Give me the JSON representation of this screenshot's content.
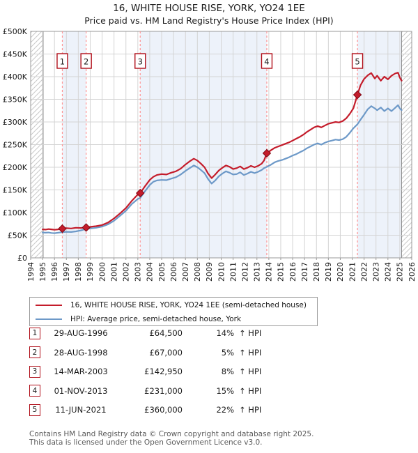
{
  "title": "16, WHITE HOUSE RISE, YORK, YO24 1EE",
  "subtitle": "Price paid vs. HM Land Registry's House Price Index (HPI)",
  "chart_data": {
    "type": "line",
    "x_axis": {
      "min": 1994,
      "max": 2026,
      "ticks": [
        1994,
        1995,
        1996,
        1997,
        1998,
        1999,
        2000,
        2001,
        2002,
        2003,
        2004,
        2005,
        2006,
        2007,
        2008,
        2009,
        2010,
        2011,
        2012,
        2013,
        2014,
        2015,
        2016,
        2017,
        2018,
        2019,
        2020,
        2021,
        2022,
        2023,
        2024,
        2025,
        2026
      ]
    },
    "y_axis": {
      "min": 0,
      "max": 500000,
      "tick_step": 50000,
      "tick_labels": [
        "£0",
        "£50K",
        "£100K",
        "£150K",
        "£200K",
        "£250K",
        "£300K",
        "£350K",
        "£400K",
        "£450K",
        "£500K"
      ]
    },
    "colors": {
      "property": "#c41c2b",
      "hpi": "#6d99c8",
      "sale_line": "#ff9494",
      "band": "#edf2fa",
      "grid": "#d4d4d4",
      "border": "#999999",
      "hatch": "#c9c9c9",
      "badge_border": "#b00d18",
      "data_edge": "#8a8a8a"
    },
    "bands": [
      [
        1996.66,
        1998.66
      ],
      [
        2003.2,
        2013.83
      ],
      [
        2021.44,
        2025.15
      ]
    ],
    "no_data": [
      [
        1994,
        1995.05
      ],
      [
        2025.15,
        2026
      ]
    ],
    "sales": [
      {
        "n": "1",
        "year": 1996.66,
        "price": 64500
      },
      {
        "n": "2",
        "year": 1998.66,
        "price": 67000
      },
      {
        "n": "3",
        "year": 2003.2,
        "price": 142950
      },
      {
        "n": "4",
        "year": 2013.83,
        "price": 231000
      },
      {
        "n": "5",
        "year": 2021.44,
        "price": 360000
      }
    ],
    "series": [
      {
        "name": "16, WHITE HOUSE RISE, YORK, YO24 1EE (semi-detached house)",
        "color": "#c41c2b",
        "points": [
          [
            1995.0,
            63000
          ],
          [
            1995.25,
            62500
          ],
          [
            1995.5,
            63500
          ],
          [
            1995.75,
            63000
          ],
          [
            1996.0,
            62000
          ],
          [
            1996.33,
            63000
          ],
          [
            1996.66,
            64500
          ],
          [
            1997.0,
            65500
          ],
          [
            1997.4,
            65000
          ],
          [
            1997.8,
            66500
          ],
          [
            1998.2,
            66000
          ],
          [
            1998.66,
            67000
          ],
          [
            1999.0,
            68500
          ],
          [
            1999.5,
            70000
          ],
          [
            2000.0,
            72500
          ],
          [
            2000.5,
            78000
          ],
          [
            2001.0,
            87000
          ],
          [
            2001.5,
            98000
          ],
          [
            2002.0,
            110000
          ],
          [
            2002.5,
            126000
          ],
          [
            2003.0,
            140000
          ],
          [
            2003.2,
            142950
          ],
          [
            2003.6,
            158000
          ],
          [
            2004.0,
            172000
          ],
          [
            2004.3,
            179000
          ],
          [
            2004.6,
            183000
          ],
          [
            2005.0,
            185000
          ],
          [
            2005.4,
            184000
          ],
          [
            2005.8,
            188000
          ],
          [
            2006.2,
            191000
          ],
          [
            2006.6,
            197000
          ],
          [
            2007.0,
            206000
          ],
          [
            2007.4,
            214000
          ],
          [
            2007.7,
            219000
          ],
          [
            2008.0,
            215000
          ],
          [
            2008.3,
            208000
          ],
          [
            2008.6,
            200000
          ],
          [
            2008.9,
            186000
          ],
          [
            2009.2,
            176000
          ],
          [
            2009.5,
            184000
          ],
          [
            2009.8,
            193000
          ],
          [
            2010.1,
            199000
          ],
          [
            2010.4,
            204000
          ],
          [
            2010.7,
            201000
          ],
          [
            2011.0,
            196000
          ],
          [
            2011.3,
            198000
          ],
          [
            2011.6,
            202000
          ],
          [
            2011.9,
            196000
          ],
          [
            2012.2,
            199000
          ],
          [
            2012.5,
            203000
          ],
          [
            2012.8,
            200000
          ],
          [
            2013.1,
            203000
          ],
          [
            2013.4,
            208000
          ],
          [
            2013.6,
            215000
          ],
          [
            2013.83,
            231000
          ],
          [
            2014.2,
            238000
          ],
          [
            2014.5,
            243000
          ],
          [
            2014.8,
            246000
          ],
          [
            2015.1,
            249000
          ],
          [
            2015.4,
            252000
          ],
          [
            2015.7,
            255000
          ],
          [
            2016.0,
            259000
          ],
          [
            2016.3,
            263000
          ],
          [
            2016.6,
            267000
          ],
          [
            2016.9,
            272000
          ],
          [
            2017.2,
            278000
          ],
          [
            2017.5,
            283000
          ],
          [
            2017.8,
            288000
          ],
          [
            2018.1,
            291000
          ],
          [
            2018.4,
            288000
          ],
          [
            2018.7,
            292000
          ],
          [
            2019.0,
            296000
          ],
          [
            2019.3,
            298000
          ],
          [
            2019.6,
            300000
          ],
          [
            2019.9,
            299000
          ],
          [
            2020.2,
            302000
          ],
          [
            2020.5,
            308000
          ],
          [
            2020.8,
            318000
          ],
          [
            2021.1,
            330000
          ],
          [
            2021.44,
            360000
          ],
          [
            2021.7,
            381000
          ],
          [
            2022.0,
            395000
          ],
          [
            2022.3,
            403000
          ],
          [
            2022.6,
            408000
          ],
          [
            2022.9,
            396000
          ],
          [
            2023.1,
            402000
          ],
          [
            2023.4,
            391000
          ],
          [
            2023.7,
            400000
          ],
          [
            2024.0,
            394000
          ],
          [
            2024.3,
            402000
          ],
          [
            2024.6,
            407000
          ],
          [
            2024.85,
            409000
          ],
          [
            2025.0,
            398000
          ],
          [
            2025.15,
            391000
          ]
        ]
      },
      {
        "name": "HPI: Average price, semi-detached house, York",
        "color": "#6d99c8",
        "points": [
          [
            1995.0,
            56000
          ],
          [
            1995.25,
            55500
          ],
          [
            1995.5,
            56000
          ],
          [
            1995.75,
            55000
          ],
          [
            1996.0,
            54500
          ],
          [
            1996.33,
            55500
          ],
          [
            1996.66,
            56600
          ],
          [
            1997.0,
            57500
          ],
          [
            1997.4,
            57000
          ],
          [
            1997.8,
            58500
          ],
          [
            1998.2,
            60500
          ],
          [
            1998.66,
            63800
          ],
          [
            1999.0,
            65000
          ],
          [
            1999.5,
            66500
          ],
          [
            2000.0,
            69000
          ],
          [
            2000.5,
            74000
          ],
          [
            2001.0,
            82000
          ],
          [
            2001.5,
            93000
          ],
          [
            2002.0,
            104000
          ],
          [
            2002.5,
            119000
          ],
          [
            2003.0,
            130000
          ],
          [
            2003.2,
            132400
          ],
          [
            2003.6,
            147000
          ],
          [
            2004.0,
            161000
          ],
          [
            2004.3,
            168000
          ],
          [
            2004.6,
            171000
          ],
          [
            2005.0,
            172000
          ],
          [
            2005.4,
            171500
          ],
          [
            2005.8,
            175000
          ],
          [
            2006.2,
            178000
          ],
          [
            2006.6,
            184000
          ],
          [
            2007.0,
            192000
          ],
          [
            2007.4,
            199000
          ],
          [
            2007.7,
            204000
          ],
          [
            2008.0,
            200000
          ],
          [
            2008.3,
            194000
          ],
          [
            2008.6,
            187000
          ],
          [
            2008.9,
            174000
          ],
          [
            2009.2,
            164000
          ],
          [
            2009.5,
            171000
          ],
          [
            2009.8,
            180000
          ],
          [
            2010.1,
            186000
          ],
          [
            2010.4,
            191000
          ],
          [
            2010.7,
            188000
          ],
          [
            2011.0,
            184000
          ],
          [
            2011.3,
            185000
          ],
          [
            2011.6,
            189000
          ],
          [
            2011.9,
            183000
          ],
          [
            2012.2,
            186000
          ],
          [
            2012.5,
            190000
          ],
          [
            2012.8,
            187000
          ],
          [
            2013.1,
            190000
          ],
          [
            2013.4,
            194000
          ],
          [
            2013.6,
            198000
          ],
          [
            2013.83,
            200900
          ],
          [
            2014.2,
            206000
          ],
          [
            2014.5,
            211000
          ],
          [
            2014.8,
            214000
          ],
          [
            2015.1,
            216000
          ],
          [
            2015.4,
            219000
          ],
          [
            2015.7,
            222000
          ],
          [
            2016.0,
            226000
          ],
          [
            2016.3,
            229000
          ],
          [
            2016.6,
            233000
          ],
          [
            2016.9,
            237000
          ],
          [
            2017.2,
            242000
          ],
          [
            2017.5,
            246000
          ],
          [
            2017.8,
            250000
          ],
          [
            2018.1,
            253000
          ],
          [
            2018.4,
            250000
          ],
          [
            2018.7,
            254000
          ],
          [
            2019.0,
            257000
          ],
          [
            2019.3,
            259000
          ],
          [
            2019.6,
            261000
          ],
          [
            2019.9,
            260000
          ],
          [
            2020.2,
            262000
          ],
          [
            2020.5,
            267000
          ],
          [
            2020.8,
            276000
          ],
          [
            2021.1,
            286000
          ],
          [
            2021.44,
            295000
          ],
          [
            2021.7,
            305000
          ],
          [
            2022.0,
            316000
          ],
          [
            2022.3,
            328000
          ],
          [
            2022.6,
            335000
          ],
          [
            2022.9,
            330000
          ],
          [
            2023.1,
            326000
          ],
          [
            2023.4,
            332000
          ],
          [
            2023.7,
            324000
          ],
          [
            2024.0,
            330000
          ],
          [
            2024.3,
            324000
          ],
          [
            2024.6,
            331000
          ],
          [
            2024.85,
            337000
          ],
          [
            2025.0,
            330000
          ],
          [
            2025.15,
            326000
          ]
        ]
      }
    ],
    "legend_position": "bottom"
  },
  "legend": {
    "entries": [
      {
        "label": "16, WHITE HOUSE RISE, YORK, YO24 1EE (semi-detached house)",
        "color": "#c41c2b"
      },
      {
        "label": "HPI: Average price, semi-detached house, York",
        "color": "#6d99c8"
      }
    ]
  },
  "table": {
    "rows": [
      {
        "num": "1",
        "date": "29-AUG-1996",
        "price": "£64,500",
        "pct": "14%",
        "hpi": "↑ HPI"
      },
      {
        "num": "2",
        "date": "28-AUG-1998",
        "price": "£67,000",
        "pct": "5%",
        "hpi": "↑ HPI"
      },
      {
        "num": "3",
        "date": "14-MAR-2003",
        "price": "£142,950",
        "pct": "8%",
        "hpi": "↑ HPI"
      },
      {
        "num": "4",
        "date": "01-NOV-2013",
        "price": "£231,000",
        "pct": "15%",
        "hpi": "↑ HPI"
      },
      {
        "num": "5",
        "date": "11-JUN-2021",
        "price": "£360,000",
        "pct": "22%",
        "hpi": "↑ HPI"
      }
    ]
  },
  "footer": {
    "line1": "Contains HM Land Registry data © Crown copyright and database right 2025.",
    "line2": "This data is licensed under the Open Government Licence v3.0."
  }
}
